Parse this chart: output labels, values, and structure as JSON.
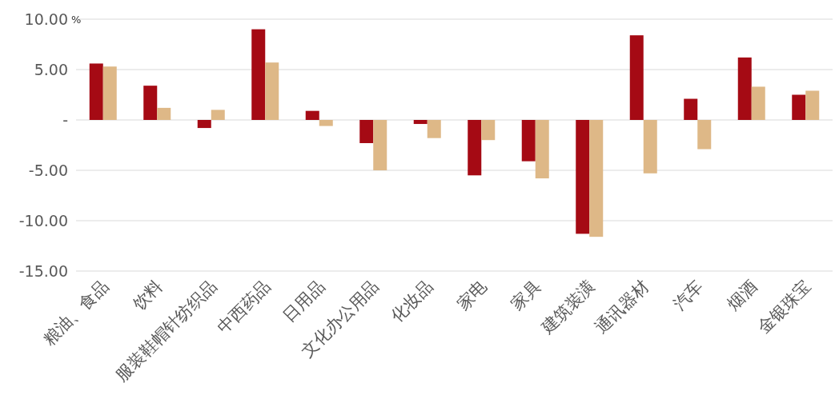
{
  "chart_data": {
    "type": "bar",
    "ylabel": "%",
    "categories": [
      "粮油、食品",
      "饮料",
      "服装鞋帽针纺织品",
      "中西药品",
      "日用品",
      "文化办公用品",
      "化妆品",
      "家电",
      "家具",
      "建筑装潢",
      "通讯器材",
      "汽车",
      "烟酒",
      "金银珠宝"
    ],
    "series": [
      {
        "color": "#a50a14",
        "values": [
          5.6,
          3.4,
          -0.8,
          9.0,
          0.9,
          -2.3,
          -0.4,
          -5.5,
          -4.1,
          -11.3,
          8.4,
          2.1,
          6.2,
          2.5
        ]
      },
      {
        "color": "#deb887",
        "values": [
          5.3,
          1.2,
          1.0,
          5.7,
          -0.6,
          -5.0,
          -1.8,
          -2.0,
          -5.8,
          -11.6,
          -5.3,
          -2.9,
          3.3,
          2.9
        ]
      }
    ],
    "ylim": [
      -15,
      10
    ],
    "yticks": [
      {
        "value": 10,
        "label": "10.00"
      },
      {
        "value": 5,
        "label": "5.00"
      },
      {
        "value": 0,
        "label": "-"
      },
      {
        "value": -5,
        "label": "-5.00"
      },
      {
        "value": -10,
        "label": "-10.00"
      },
      {
        "value": -15,
        "label": "-15.00"
      }
    ],
    "grid": "y"
  }
}
